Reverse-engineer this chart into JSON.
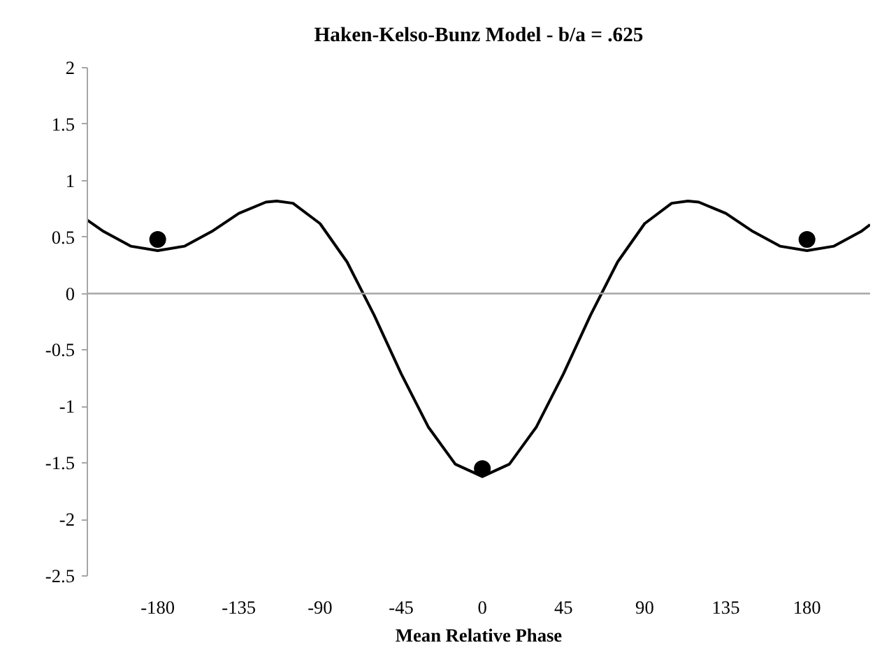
{
  "chart_data": {
    "type": "line",
    "title": "Haken-Kelso-Bunz Model - b/a = .625",
    "xlabel": "Mean Relative Phase",
    "xlim": [
      -219,
      215
    ],
    "xticks": [
      -180,
      -135,
      -90,
      -45,
      0,
      45,
      90,
      135,
      180
    ],
    "ylim": [
      -2.5,
      2
    ],
    "yticks": [
      -2.5,
      -2,
      -1.5,
      -1,
      -0.5,
      0,
      0.5,
      1,
      1.5,
      2
    ],
    "grid": false,
    "ref_lines": [
      {
        "axis": "y",
        "value": 0,
        "color": "#a6a6a6"
      }
    ],
    "series": [
      {
        "color": "#000000",
        "marker": "none",
        "x": [
          -219,
          -210,
          -195,
          -180,
          -165,
          -150,
          -135,
          -120,
          -114,
          -105,
          -90,
          -75,
          -60,
          -45,
          -30,
          -15,
          0,
          15,
          30,
          45,
          60,
          75,
          90,
          105,
          114,
          120,
          135,
          150,
          165,
          180,
          195,
          210,
          215
        ],
        "values": [
          0.65,
          0.55,
          0.42,
          0.38,
          0.42,
          0.55,
          0.71,
          0.81,
          0.82,
          0.8,
          0.62,
          0.28,
          -0.19,
          -0.71,
          -1.18,
          -1.51,
          -1.62,
          -1.51,
          -1.18,
          -0.71,
          -0.19,
          0.28,
          0.62,
          0.8,
          0.82,
          0.81,
          0.71,
          0.55,
          0.42,
          0.38,
          0.42,
          0.55,
          0.61
        ]
      },
      {
        "type": "scatter",
        "color": "#000000",
        "marker": "circle",
        "x": [
          -180,
          0,
          180
        ],
        "values": [
          0.48,
          -1.55,
          0.48
        ]
      }
    ]
  }
}
